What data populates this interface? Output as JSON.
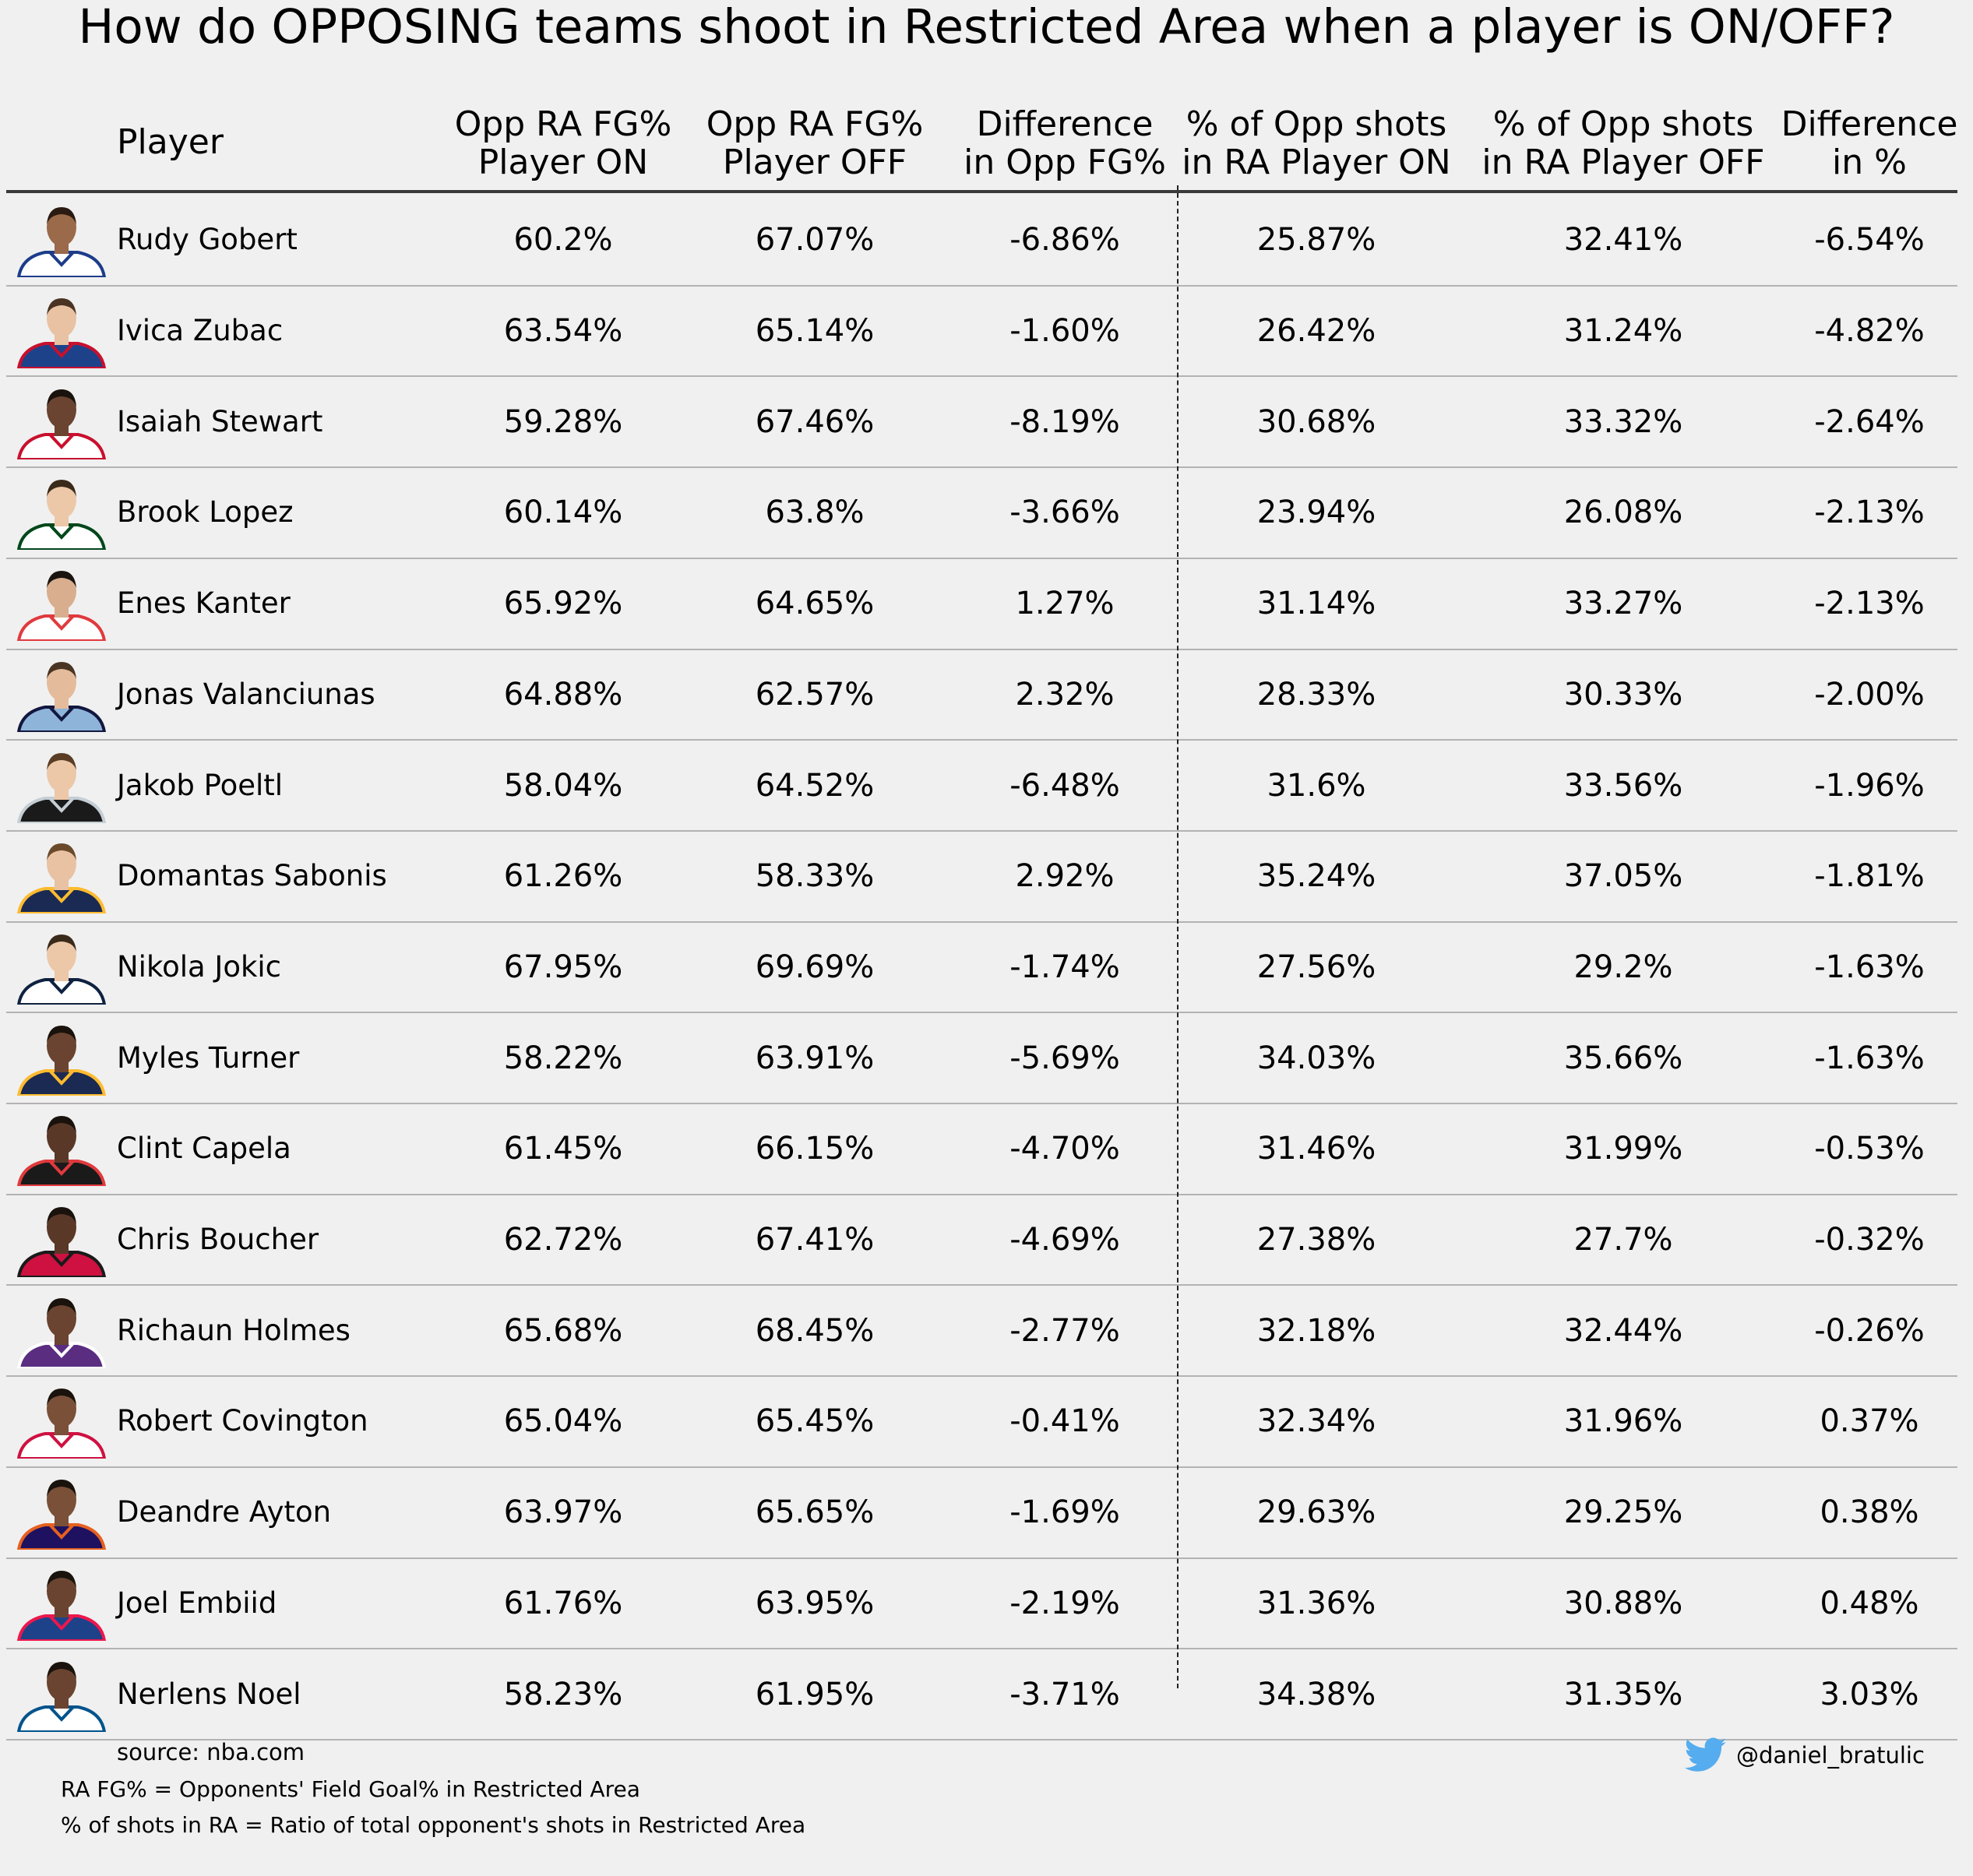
{
  "title": "How do OPPOSING teams shoot in Restricted Area when a player is ON/OFF?",
  "headers": {
    "player": "Player",
    "columns": [
      [
        "Opp RA FG%",
        "Player ON"
      ],
      [
        "Opp RA FG%",
        "Player OFF"
      ],
      [
        "Difference",
        "in Opp FG%"
      ],
      [
        "% of Opp shots",
        "in RA Player ON"
      ],
      [
        "% of Opp shots",
        "in RA Player OFF"
      ],
      [
        "Difference",
        "in %"
      ]
    ]
  },
  "chart_data": {
    "type": "table",
    "columns": [
      "Player",
      "Opp RA FG% Player ON",
      "Opp RA FG% Player OFF",
      "Difference in Opp FG%",
      "% of Opp shots in RA Player ON",
      "% of Opp shots in RA Player OFF",
      "Difference in %"
    ],
    "rows": [
      {
        "player": "Rudy Gobert",
        "cells": [
          "60.2%",
          "67.07%",
          "-6.86%",
          "25.87%",
          "32.41%",
          "-6.54%"
        ]
      },
      {
        "player": "Ivica Zubac",
        "cells": [
          "63.54%",
          "65.14%",
          "-1.60%",
          "26.42%",
          "31.24%",
          "-4.82%"
        ]
      },
      {
        "player": "Isaiah Stewart",
        "cells": [
          "59.28%",
          "67.46%",
          "-8.19%",
          "30.68%",
          "33.32%",
          "-2.64%"
        ]
      },
      {
        "player": "Brook Lopez",
        "cells": [
          "60.14%",
          "63.8%",
          "-3.66%",
          "23.94%",
          "26.08%",
          "-2.13%"
        ]
      },
      {
        "player": "Enes Kanter",
        "cells": [
          "65.92%",
          "64.65%",
          "1.27%",
          "31.14%",
          "33.27%",
          "-2.13%"
        ]
      },
      {
        "player": "Jonas Valanciunas",
        "cells": [
          "64.88%",
          "62.57%",
          "2.32%",
          "28.33%",
          "30.33%",
          "-2.00%"
        ]
      },
      {
        "player": "Jakob Poeltl",
        "cells": [
          "58.04%",
          "64.52%",
          "-6.48%",
          "31.6%",
          "33.56%",
          "-1.96%"
        ]
      },
      {
        "player": "Domantas Sabonis",
        "cells": [
          "61.26%",
          "58.33%",
          "2.92%",
          "35.24%",
          "37.05%",
          "-1.81%"
        ]
      },
      {
        "player": "Nikola Jokic",
        "cells": [
          "67.95%",
          "69.69%",
          "-1.74%",
          "27.56%",
          "29.2%",
          "-1.63%"
        ]
      },
      {
        "player": "Myles Turner",
        "cells": [
          "58.22%",
          "63.91%",
          "-5.69%",
          "34.03%",
          "35.66%",
          "-1.63%"
        ]
      },
      {
        "player": "Clint Capela",
        "cells": [
          "61.45%",
          "66.15%",
          "-4.70%",
          "31.46%",
          "31.99%",
          "-0.53%"
        ]
      },
      {
        "player": "Chris Boucher",
        "cells": [
          "62.72%",
          "67.41%",
          "-4.69%",
          "27.38%",
          "27.7%",
          "-0.32%"
        ]
      },
      {
        "player": "Richaun Holmes",
        "cells": [
          "65.68%",
          "68.45%",
          "-2.77%",
          "32.18%",
          "32.44%",
          "-0.26%"
        ]
      },
      {
        "player": "Robert Covington",
        "cells": [
          "65.04%",
          "65.45%",
          "-0.41%",
          "32.34%",
          "31.96%",
          "0.37%"
        ]
      },
      {
        "player": "Deandre Ayton",
        "cells": [
          "63.97%",
          "65.65%",
          "-1.69%",
          "29.63%",
          "29.25%",
          "0.38%"
        ]
      },
      {
        "player": "Joel Embiid",
        "cells": [
          "61.76%",
          "63.95%",
          "-2.19%",
          "31.36%",
          "30.88%",
          "0.48%"
        ]
      },
      {
        "player": "Nerlens Noel",
        "cells": [
          "58.23%",
          "61.95%",
          "-3.71%",
          "34.38%",
          "31.35%",
          "3.03%"
        ]
      }
    ]
  },
  "players": [
    {
      "skin": "#9a6a4a",
      "hair": "#2a1a12",
      "jersey": "#ffffff",
      "trim": "#1d3c8a"
    },
    {
      "skin": "#e8c2a2",
      "hair": "#4a3322",
      "jersey": "#1d428a",
      "trim": "#c8102e"
    },
    {
      "skin": "#6a4430",
      "hair": "#1a120c",
      "jersey": "#ffffff",
      "trim": "#c8102e"
    },
    {
      "skin": "#ecc8a8",
      "hair": "#3a2a1a",
      "jersey": "#ffffff",
      "trim": "#00471b"
    },
    {
      "skin": "#d8ae8e",
      "hair": "#1a1410",
      "jersey": "#ffffff",
      "trim": "#e03a3e"
    },
    {
      "skin": "#e4bc9c",
      "hair": "#4a3422",
      "jersey": "#8fb4d9",
      "trim": "#12173f"
    },
    {
      "skin": "#ecc8a8",
      "hair": "#5a3d24",
      "jersey": "#1a1a1a",
      "trim": "#c4ced4"
    },
    {
      "skin": "#e8c2a2",
      "hair": "#6a4a2a",
      "jersey": "#1a2a52",
      "trim": "#fdbb30"
    },
    {
      "skin": "#ecc8a8",
      "hair": "#3a2a1a",
      "jersey": "#ffffff",
      "trim": "#0e2240"
    },
    {
      "skin": "#6a4430",
      "hair": "#1a120c",
      "jersey": "#1a2a52",
      "trim": "#fdbb30"
    },
    {
      "skin": "#5a3828",
      "hair": "#1a120c",
      "jersey": "#1a1a1a",
      "trim": "#e03a3e"
    },
    {
      "skin": "#5a3828",
      "hair": "#1a120c",
      "jersey": "#ce1141",
      "trim": "#1a1a1a"
    },
    {
      "skin": "#6a4430",
      "hair": "#1a120c",
      "jersey": "#5a2d81",
      "trim": "#ffffff"
    },
    {
      "skin": "#7a5038",
      "hair": "#1a120c",
      "jersey": "#ffffff",
      "trim": "#ce1141"
    },
    {
      "skin": "#7a5038",
      "hair": "#1a120c",
      "jersey": "#1d1160",
      "trim": "#e56020"
    },
    {
      "skin": "#6a4430",
      "hair": "#1a120c",
      "jersey": "#1d428a",
      "trim": "#ed174c"
    },
    {
      "skin": "#6a4430",
      "hair": "#1a120c",
      "jersey": "#ffffff",
      "trim": "#00538c"
    }
  ],
  "footer": {
    "source": "source: nba.com",
    "note1": "RA FG% = Opponents' Field Goal% in Restricted Area",
    "note2": "% of shots in RA = Ratio of total opponent's shots in Restricted Area",
    "handle": "@daniel_bratulic"
  },
  "colors": {
    "background": "#f0f0f0",
    "twitter": "#55acee",
    "header_line": "#3a3a3a",
    "row_separator": "#b3b3b3"
  }
}
